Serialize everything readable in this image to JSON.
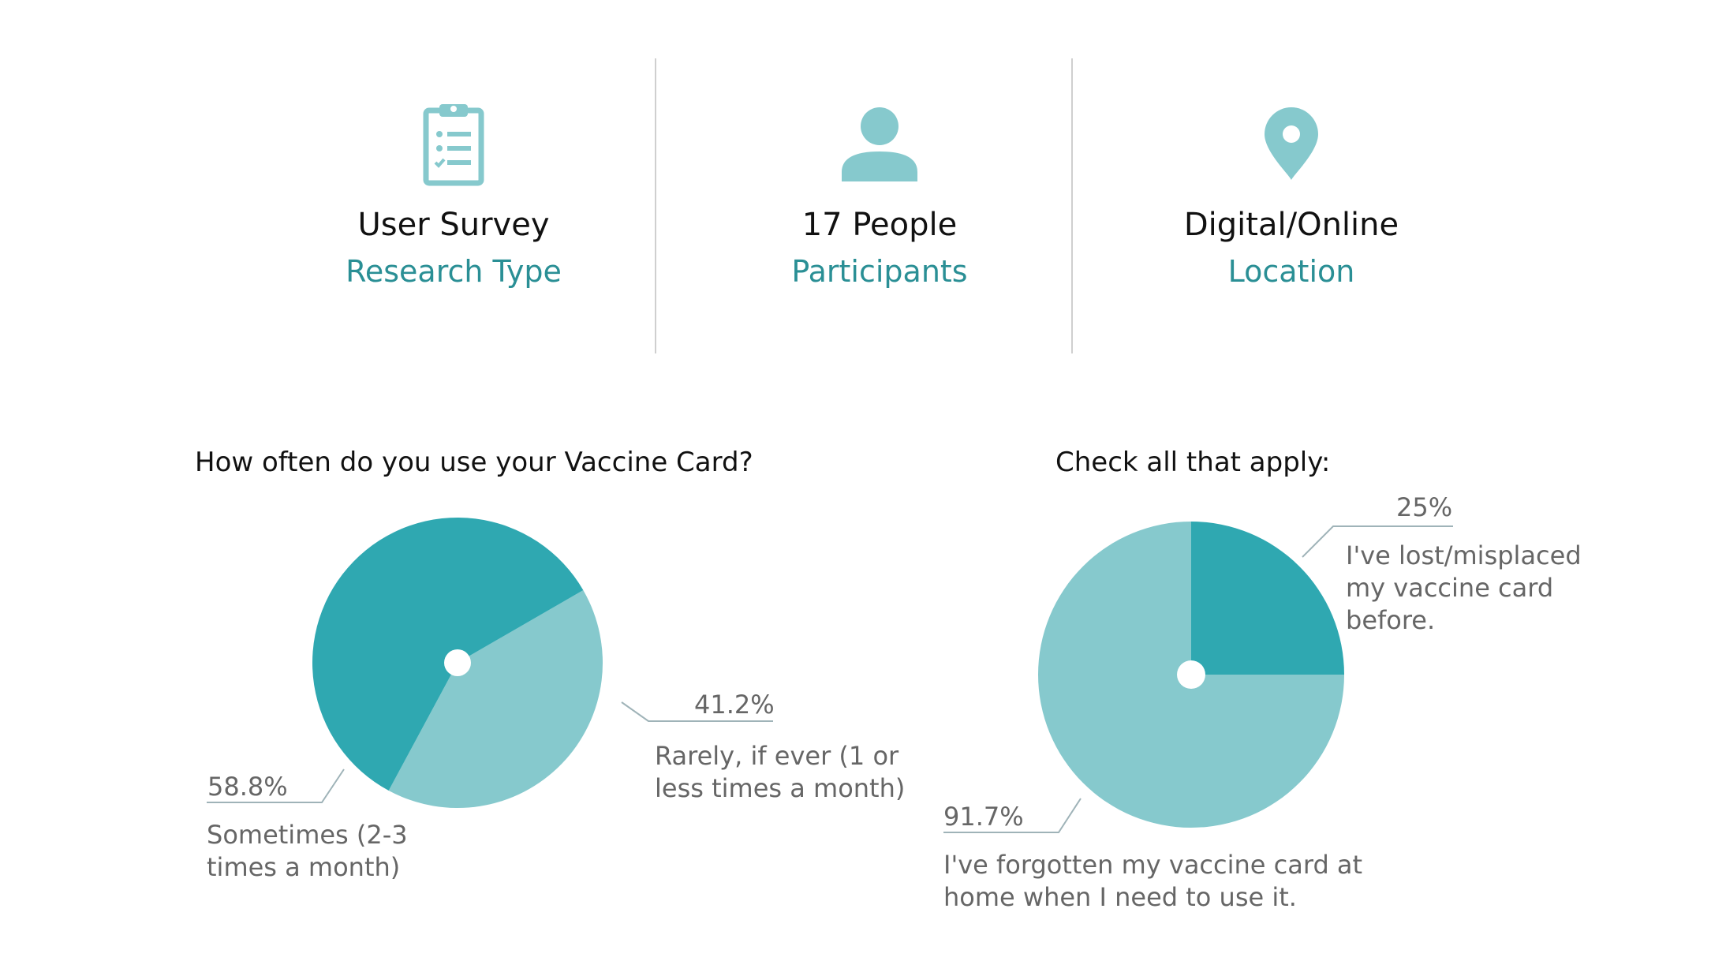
{
  "stats": [
    {
      "value": "User Survey",
      "label": "Research Type",
      "icon": "clipboard-icon"
    },
    {
      "value": "17 People",
      "label": "Participants",
      "icon": "person-icon"
    },
    {
      "value": "Digital/Online",
      "label": "Location",
      "icon": "location-pin-icon"
    }
  ],
  "colors": {
    "dark": "#2fa8b1",
    "light": "#86c9cd",
    "accent_text": "#2a8f95",
    "leader": "#9fb3b8"
  },
  "chart_data": [
    {
      "type": "pie",
      "title": "How often do you use your Vaccine Card?",
      "slices": [
        {
          "label_lines": [
            "Rarely, if ever (1 or",
            "less times a month)"
          ],
          "value": 41.2,
          "value_label": "41.2%",
          "color": "#86c9cd"
        },
        {
          "label_lines": [
            "Sometimes (2-3",
            "times a month)"
          ],
          "value": 58.8,
          "value_label": "58.8%",
          "color": "#2fa8b1"
        }
      ]
    },
    {
      "type": "pie",
      "title": "Check all that apply:",
      "slices": [
        {
          "label_lines": [
            "I've lost/misplaced",
            "my vaccine card",
            "before."
          ],
          "value": 25,
          "value_label": "25%",
          "color": "#2fa8b1"
        },
        {
          "label_lines": [
            "I've forgotten my vaccine card at",
            "home when I need to use it."
          ],
          "value": 91.7,
          "value_label": "91.7%",
          "color": "#86c9cd"
        }
      ]
    }
  ]
}
